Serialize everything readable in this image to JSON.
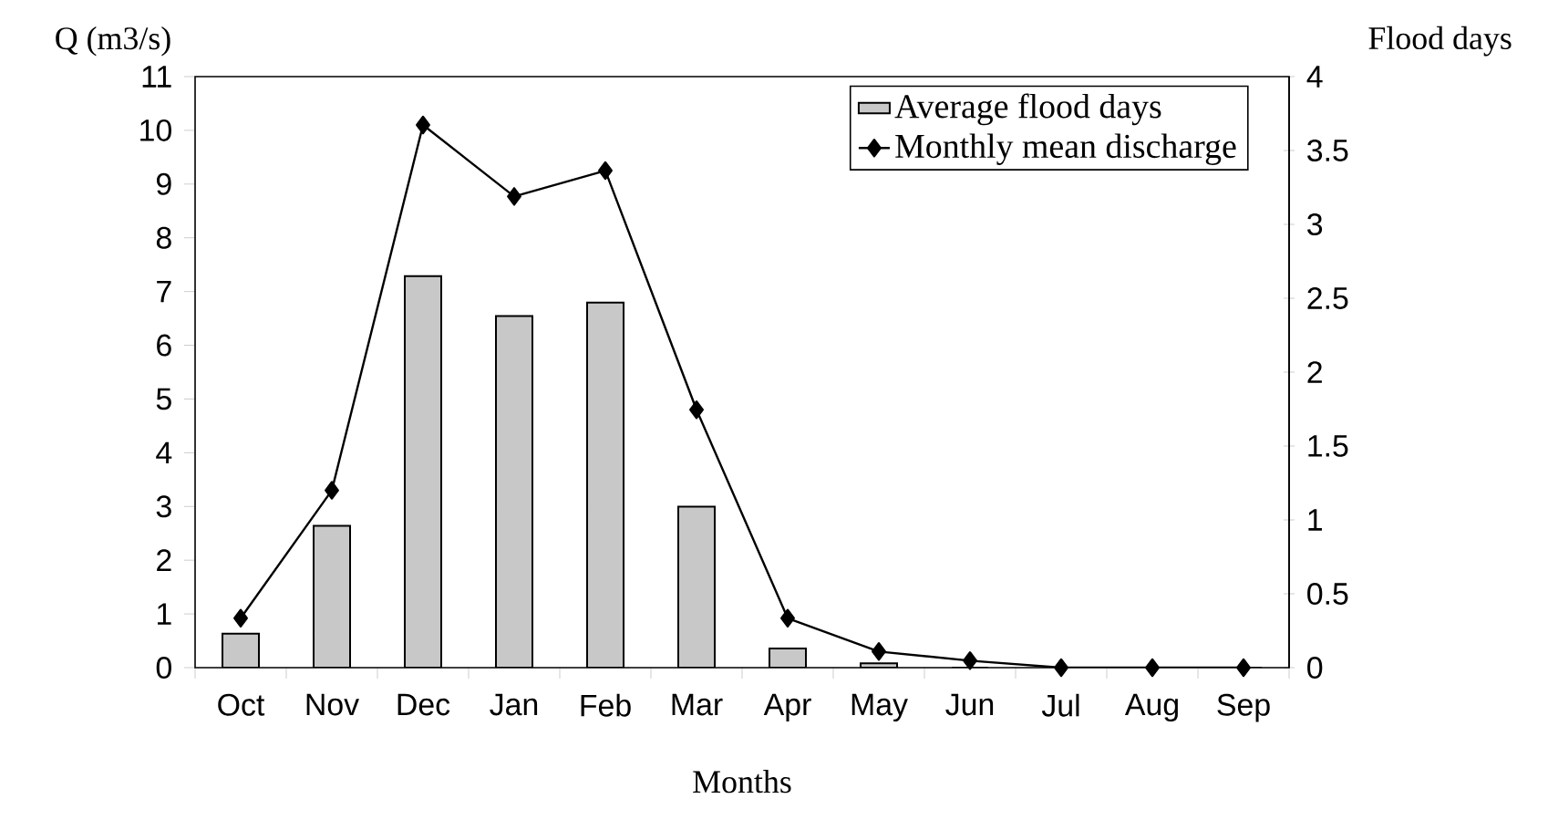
{
  "chart_data": {
    "type": "bar",
    "xlabel": "Months",
    "ylabel": "Q (m3/s)",
    "y2label": "Flood days",
    "categories": [
      "Oct",
      "Nov",
      "Dec",
      "Jan",
      "Feb",
      "Mar",
      "Apr",
      "May",
      "Jun",
      "Jul",
      "Aug",
      "Sep"
    ],
    "series": [
      {
        "name": "Average flood days",
        "axis": "y2",
        "color": "#c8c8c8",
        "values": [
          0.23,
          0.96,
          2.65,
          2.38,
          2.47,
          1.09,
          0.13,
          0.03,
          0,
          0,
          0,
          0
        ]
      },
      {
        "name": "Monthly mean discharge",
        "type": "line",
        "color": "#000000",
        "marker": "diamond",
        "values": [
          0.92,
          3.3,
          10.1,
          8.77,
          9.25,
          4.8,
          0.92,
          0.3,
          0.13,
          0,
          0,
          0
        ]
      }
    ],
    "ylim": [
      0,
      11
    ],
    "yticks": [
      0,
      1,
      2,
      3,
      4,
      5,
      6,
      7,
      8,
      9,
      10,
      11
    ],
    "y2lim": [
      0,
      4
    ],
    "y2ticks": [
      0,
      0.5,
      1,
      1.5,
      2,
      2.5,
      3,
      3.5,
      4
    ],
    "legend": "top right"
  }
}
